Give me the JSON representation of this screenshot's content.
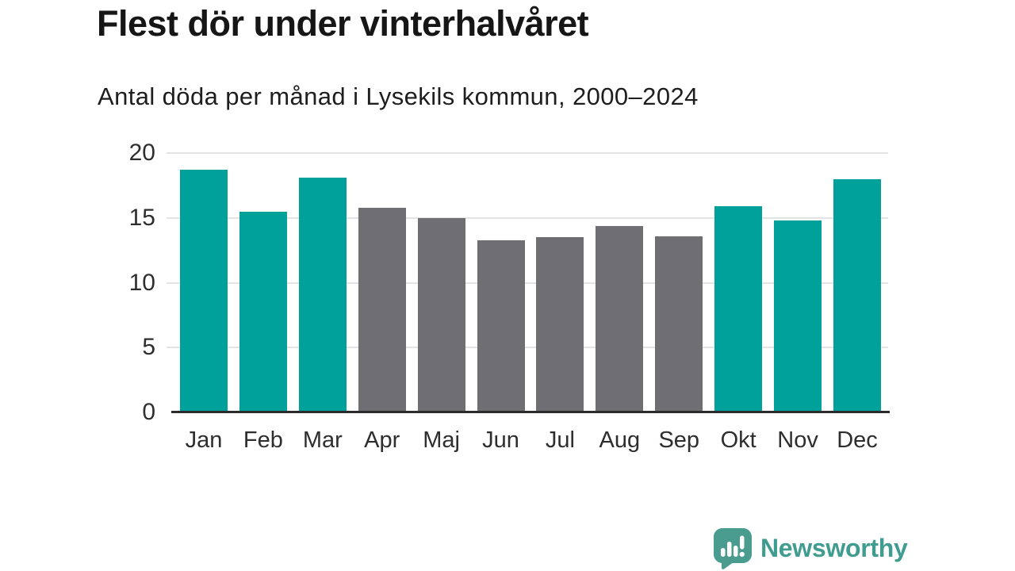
{
  "header": {
    "title": "Flest dör under vinterhalvåret",
    "subtitle": "Antal döda per månad i Lysekils kommun, 2000–2024"
  },
  "chart_data": {
    "type": "bar",
    "title": "Flest dör under vinterhalvåret",
    "subtitle": "Antal döda per månad i Lysekils kommun, 2000–2024",
    "categories": [
      "Jan",
      "Feb",
      "Mar",
      "Apr",
      "Maj",
      "Jun",
      "Jul",
      "Aug",
      "Sep",
      "Okt",
      "Nov",
      "Dec"
    ],
    "values": [
      18.7,
      15.5,
      18.1,
      15.8,
      15.0,
      13.3,
      13.5,
      14.4,
      13.6,
      15.9,
      14.8,
      18.0
    ],
    "bar_colors": [
      "winter",
      "winter",
      "winter",
      "summer",
      "summer",
      "summer",
      "summer",
      "summer",
      "summer",
      "winter",
      "winter",
      "winter"
    ],
    "colors": {
      "winter": "#00a09b",
      "summer": "#6f6e73"
    },
    "xlabel": "",
    "ylabel": "",
    "ylim": [
      0,
      20
    ],
    "yticks": [
      0,
      5,
      10,
      15,
      20
    ],
    "grid": true,
    "legend": "none"
  },
  "footer": {
    "brand": "Newsworthy",
    "logo_icon": "bar-chart-speech-bubble-icon",
    "brand_color": "#3f9c8e"
  }
}
